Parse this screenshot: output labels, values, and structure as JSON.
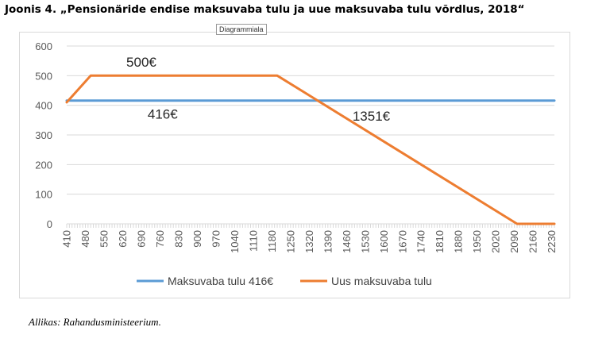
{
  "title": "Joonis 4. „Pensionäride endise maksuvaba tulu ja uue maksuvaba tulu võrdlus, 2018“",
  "tooltip": "Diagrammiala",
  "source": "Allikas: Rahandusministeerium.",
  "colors": {
    "series1": "#5b9bd5",
    "series2": "#ed7d31",
    "grid": "#d9d9d9",
    "axis": "#595959"
  },
  "chart_data": {
    "type": "line",
    "title": "",
    "xlabel": "",
    "ylabel": "",
    "ylim": [
      0,
      600
    ],
    "yticks": [
      0,
      100,
      200,
      300,
      400,
      500,
      600
    ],
    "x": [
      410,
      420,
      430,
      440,
      450,
      460,
      470,
      480,
      490,
      500,
      510,
      520,
      530,
      540,
      550,
      560,
      570,
      580,
      590,
      600,
      610,
      620,
      630,
      640,
      650,
      660,
      670,
      680,
      690,
      700,
      710,
      720,
      730,
      740,
      750,
      760,
      770,
      780,
      790,
      800,
      810,
      820,
      830,
      840,
      850,
      860,
      870,
      880,
      890,
      900,
      910,
      920,
      930,
      940,
      950,
      960,
      970,
      980,
      990,
      1000,
      1010,
      1020,
      1030,
      1040,
      1050,
      1060,
      1070,
      1080,
      1090,
      1100,
      1110,
      1120,
      1130,
      1140,
      1150,
      1160,
      1170,
      1180,
      1190,
      1200,
      1210,
      1220,
      1230,
      1240,
      1250,
      1260,
      1270,
      1280,
      1290,
      1300,
      1310,
      1320,
      1330,
      1340,
      1350,
      1360,
      1370,
      1380,
      1390,
      1400,
      1410,
      1420,
      1430,
      1440,
      1450,
      1460,
      1470,
      1480,
      1490,
      1500,
      1510,
      1520,
      1530,
      1540,
      1550,
      1560,
      1570,
      1580,
      1590,
      1600,
      1610,
      1620,
      1630,
      1640,
      1650,
      1660,
      1670,
      1680,
      1690,
      1700,
      1710,
      1720,
      1730,
      1740,
      1750,
      1760,
      1770,
      1780,
      1790,
      1800,
      1810,
      1820,
      1830,
      1840,
      1850,
      1860,
      1870,
      1880,
      1890,
      1900,
      1910,
      1920,
      1930,
      1940,
      1950,
      1960,
      1970,
      1980,
      1990,
      2000,
      2010,
      2020,
      2030,
      2040,
      2050,
      2060,
      2070,
      2080,
      2090,
      2100,
      2110,
      2120,
      2130,
      2140,
      2150,
      2160,
      2170,
      2180,
      2190,
      2200,
      2210,
      2220,
      2230,
      2240
    ],
    "xtick_labels": [
      "410",
      "480",
      "550",
      "620",
      "690",
      "760",
      "830",
      "900",
      "970",
      "1040",
      "1110",
      "1180",
      "1250",
      "1320",
      "1390",
      "1460",
      "1530",
      "1600",
      "1670",
      "1740",
      "1810",
      "1880",
      "1950",
      "2020",
      "2090",
      "2160",
      "2230"
    ],
    "series": [
      {
        "name": "Maksuvaba tulu 416€",
        "points": [
          [
            410,
            416
          ],
          [
            2240,
            416
          ]
        ]
      },
      {
        "name": "Uus maksuvaba tulu",
        "points": [
          [
            410,
            410
          ],
          [
            500,
            500
          ],
          [
            1200,
            500
          ],
          [
            2100,
            0
          ],
          [
            2240,
            0
          ]
        ]
      }
    ],
    "annotations": [
      {
        "text": "500€",
        "x": 690,
        "y": 530
      },
      {
        "text": "416€",
        "x": 770,
        "y": 355
      },
      {
        "text": "1351€",
        "x": 1553,
        "y": 348
      }
    ],
    "legend_position": "bottom"
  }
}
